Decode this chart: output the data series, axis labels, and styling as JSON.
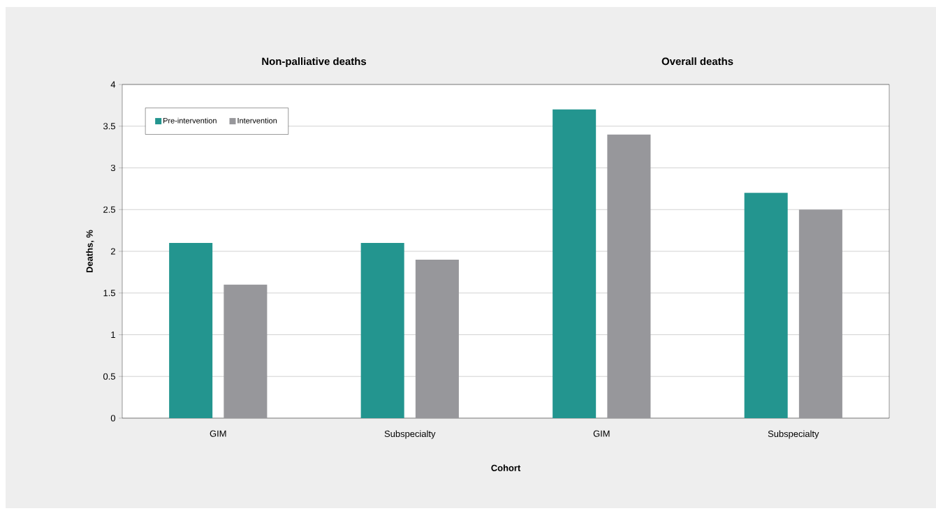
{
  "chart_data": {
    "type": "bar",
    "xlabel": "Cohort",
    "ylabel": "Deaths, %",
    "categories": [
      "GIM",
      "Subspecialty",
      "GIM",
      "Subspecialty"
    ],
    "series": [
      {
        "name": "Pre-intervention",
        "color": "#23958f",
        "values": [
          2.1,
          2.1,
          3.7,
          2.7
        ]
      },
      {
        "name": "Intervention",
        "color": "#97979b",
        "values": [
          1.6,
          1.9,
          3.4,
          2.5
        ]
      }
    ],
    "annotations": [
      "Non-palliative deaths",
      "Overall deaths"
    ],
    "ylim": [
      0,
      4
    ],
    "yticks": [
      0,
      0.5,
      1,
      1.5,
      2,
      2.5,
      3,
      3.5,
      4
    ],
    "grid": "y",
    "legend": "top left"
  }
}
